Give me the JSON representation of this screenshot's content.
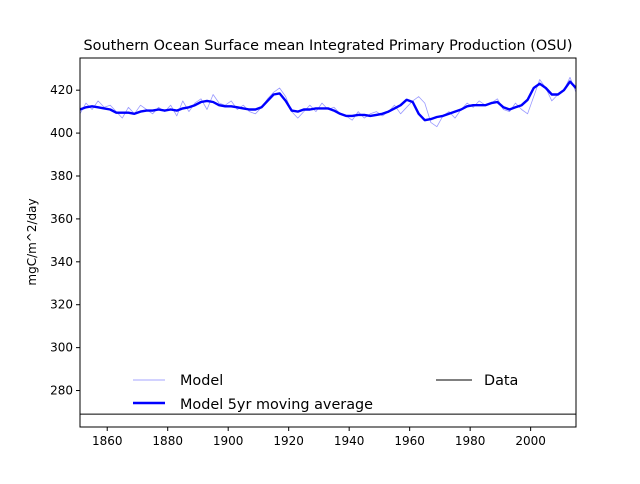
{
  "chart_data": {
    "type": "line",
    "title": "Southern Ocean Surface mean Integrated Primary Production (OSU)",
    "xlabel": "",
    "ylabel": "mgC/m^2/day",
    "xlim": [
      1851,
      2015
    ],
    "ylim": [
      263,
      435
    ],
    "xticks": [
      1860,
      1880,
      1900,
      1920,
      1940,
      1960,
      1980,
      2000
    ],
    "yticks": [
      280,
      300,
      320,
      340,
      360,
      380,
      400,
      420
    ],
    "grid": false,
    "legend": {
      "placement": "lower-left",
      "entries": [
        "Model",
        "Model 5yr moving average",
        "Data"
      ]
    },
    "series": [
      {
        "name": "Model",
        "color": "#0000ff",
        "style": "thin-translucent",
        "x": [
          1851,
          1853,
          1855,
          1857,
          1859,
          1861,
          1863,
          1865,
          1867,
          1869,
          1871,
          1873,
          1875,
          1877,
          1879,
          1881,
          1883,
          1885,
          1887,
          1889,
          1891,
          1893,
          1895,
          1897,
          1899,
          1901,
          1903,
          1905,
          1907,
          1909,
          1911,
          1913,
          1915,
          1917,
          1919,
          1921,
          1923,
          1925,
          1927,
          1929,
          1931,
          1933,
          1935,
          1937,
          1939,
          1941,
          1943,
          1945,
          1947,
          1949,
          1951,
          1953,
          1955,
          1957,
          1959,
          1961,
          1963,
          1965,
          1967,
          1969,
          1971,
          1973,
          1975,
          1977,
          1979,
          1981,
          1983,
          1985,
          1987,
          1989,
          1991,
          1993,
          1995,
          1997,
          1999,
          2001,
          2003,
          2005,
          2007,
          2009,
          2011,
          2013,
          2015
        ],
        "values": [
          409,
          414,
          411,
          415,
          412,
          413,
          410,
          407,
          412,
          409,
          413,
          411,
          409,
          412,
          410,
          413,
          408,
          415,
          410,
          414,
          416,
          411,
          418,
          414,
          413,
          415,
          411,
          413,
          410,
          409,
          412,
          416,
          419,
          421,
          417,
          410,
          407,
          410,
          413,
          410,
          414,
          411,
          412,
          409,
          408,
          406,
          410,
          407,
          409,
          410,
          408,
          410,
          413,
          409,
          412,
          415,
          417,
          414,
          405,
          403,
          408,
          410,
          407,
          411,
          414,
          412,
          415,
          413,
          414,
          416,
          411,
          410,
          414,
          411,
          409,
          417,
          425,
          421,
          415,
          418,
          420,
          426,
          419
        ]
      },
      {
        "name": "Model 5yr moving average",
        "color": "#0000ff",
        "style": "thick",
        "x": [
          1851,
          1853,
          1855,
          1857,
          1859,
          1861,
          1863,
          1865,
          1867,
          1869,
          1871,
          1873,
          1875,
          1877,
          1879,
          1881,
          1883,
          1885,
          1887,
          1889,
          1891,
          1893,
          1895,
          1897,
          1899,
          1901,
          1903,
          1905,
          1907,
          1909,
          1911,
          1913,
          1915,
          1917,
          1919,
          1921,
          1923,
          1925,
          1927,
          1929,
          1931,
          1933,
          1935,
          1937,
          1939,
          1941,
          1943,
          1945,
          1947,
          1949,
          1951,
          1953,
          1955,
          1957,
          1959,
          1961,
          1963,
          1965,
          1967,
          1969,
          1971,
          1973,
          1975,
          1977,
          1979,
          1981,
          1983,
          1985,
          1987,
          1989,
          1991,
          1993,
          1995,
          1997,
          1999,
          2001,
          2003,
          2005,
          2007,
          2009,
          2011,
          2013,
          2015
        ],
        "values": [
          411,
          412,
          412.5,
          412,
          411.5,
          411,
          409.5,
          409.5,
          409.5,
          409,
          410,
          410.5,
          410.5,
          411,
          410.5,
          411,
          410.5,
          411.5,
          412,
          413,
          414.5,
          415,
          414.5,
          413,
          412.5,
          412.5,
          412,
          411.5,
          411,
          411,
          412,
          415,
          418,
          418.5,
          415,
          410.5,
          410,
          411,
          411,
          411.5,
          411.5,
          411.5,
          410.5,
          409,
          408,
          408,
          408.5,
          408.5,
          408,
          408.5,
          409,
          410,
          411.5,
          413,
          415.5,
          414.5,
          409,
          406,
          406.5,
          407.5,
          408,
          409,
          410,
          411,
          412.5,
          413,
          413,
          413,
          414,
          414.5,
          412,
          411,
          412,
          413,
          415.5,
          421,
          423,
          421,
          418,
          418,
          420,
          424,
          421
        ]
      },
      {
        "name": "Data",
        "color": "#000000",
        "style": "horizontal-line",
        "values": [
          269
        ]
      }
    ]
  }
}
